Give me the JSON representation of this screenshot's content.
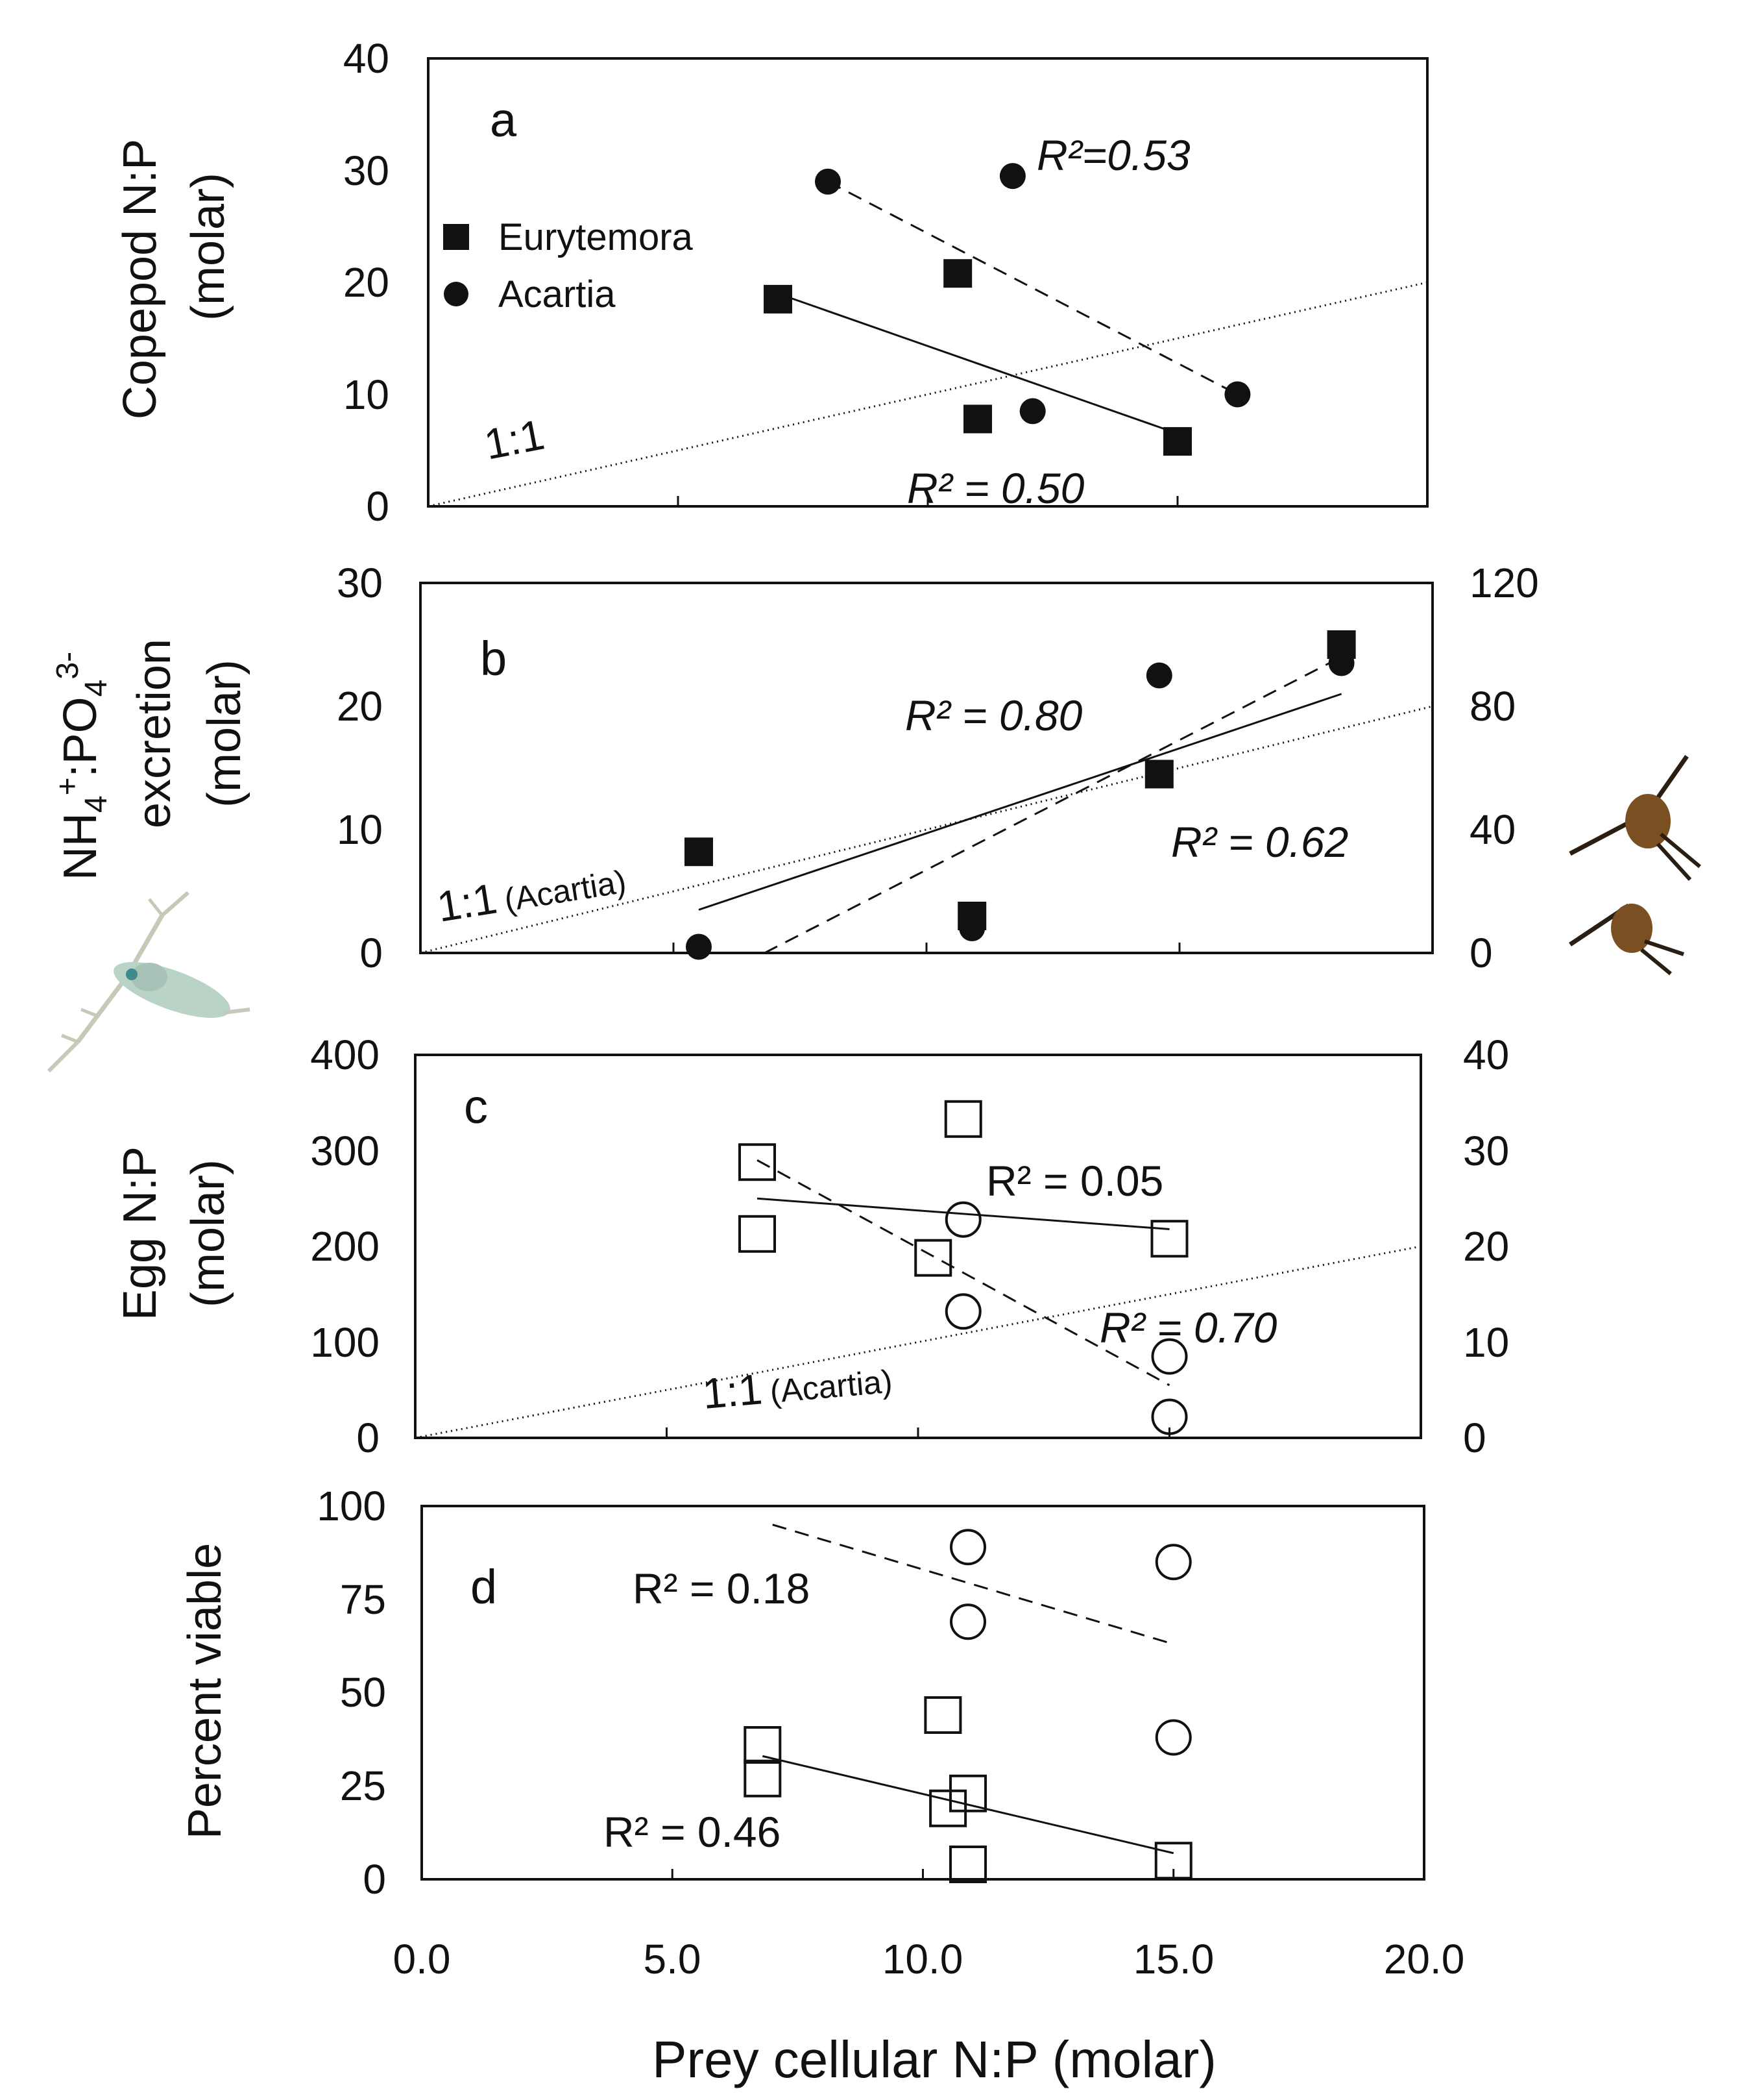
{
  "chart_data": [
    {
      "panel": "a",
      "type": "scatter",
      "ylabel_line1": "Copepod N:P",
      "ylabel_line2": "(molar)",
      "xlim": [
        0,
        20
      ],
      "ylim": [
        0,
        40
      ],
      "yticks": [
        "0",
        "10",
        "20",
        "30",
        "40"
      ],
      "legend": [
        {
          "name": "Eurytemora",
          "marker": "filled-square"
        },
        {
          "name": "Acartia",
          "marker": "filled-circle"
        }
      ],
      "series": [
        {
          "name": "Eurytemora",
          "marker": "filled-square",
          "points": [
            [
              7.0,
              18.5
            ],
            [
              10.6,
              20.8
            ],
            [
              11.0,
              7.8
            ],
            [
              15.0,
              5.8
            ]
          ],
          "fit": [
            [
              7.0,
              19.0
            ],
            [
              15.0,
              6.5
            ]
          ],
          "fit_style": "solid",
          "r2": "R² = 0.50"
        },
        {
          "name": "Acartia",
          "marker": "filled-circle",
          "points": [
            [
              8.0,
              29.0
            ],
            [
              11.7,
              29.5
            ],
            [
              12.1,
              8.5
            ],
            [
              16.2,
              10.0
            ]
          ],
          "fit": [
            [
              8.0,
              29.0
            ],
            [
              16.2,
              10.0
            ]
          ],
          "fit_style": "dashed",
          "r2": "R²=0.53"
        }
      ],
      "reference_line": {
        "label": "1:1",
        "from": [
          0,
          0
        ],
        "to": [
          20,
          20
        ]
      }
    },
    {
      "panel": "b",
      "type": "scatter",
      "ylabel_line1": "NH4+:PO43-",
      "ylabel_line2": "excretion",
      "ylabel_line3": "(molar)",
      "ylabel_parts": {
        "nh": "NH",
        "four": "4",
        "plus": "+",
        "colon_po": ":PO",
        "po4": "4",
        "minus3": "3-"
      },
      "xlim": [
        0,
        20
      ],
      "ylim": [
        0,
        30
      ],
      "yticks": [
        "0",
        "10",
        "20",
        "30"
      ],
      "ylim_right": [
        0,
        120
      ],
      "yticks_right": [
        "0",
        "40",
        "80",
        "120"
      ],
      "series": [
        {
          "name": "Eurytemora",
          "marker": "filled-square",
          "axis": "left",
          "points": [
            [
              5.5,
              8.2
            ],
            [
              10.9,
              3.0
            ],
            [
              14.6,
              14.5
            ],
            [
              18.2,
              25.0
            ]
          ],
          "fit": [
            [
              5.5,
              3.5
            ],
            [
              18.2,
              21.0
            ]
          ],
          "fit_style": "solid",
          "r2": "R² = 0.62"
        },
        {
          "name": "Acartia",
          "marker": "filled-circle",
          "axis": "right",
          "points": [
            [
              5.5,
              2.0
            ],
            [
              10.9,
              8.0
            ],
            [
              14.6,
              90.0
            ],
            [
              18.2,
              94.0
            ]
          ],
          "fit": [
            [
              6.8,
              0.0
            ],
            [
              18.2,
              96.0
            ]
          ],
          "fit_style": "dashed",
          "r2": "R² = 0.80"
        }
      ],
      "reference_line": {
        "label": "1:1",
        "label_small": "(Acartia)",
        "from": [
          0,
          0
        ],
        "to": [
          20,
          20
        ]
      }
    },
    {
      "panel": "c",
      "type": "scatter",
      "ylabel_line1": "Egg N:P",
      "ylabel_line2": "(molar)",
      "xlim": [
        0,
        20
      ],
      "ylim": [
        0,
        400
      ],
      "yticks": [
        "0",
        "100",
        "200",
        "300",
        "400"
      ],
      "ylim_right": [
        0,
        40
      ],
      "yticks_right": [
        "0",
        "10",
        "20",
        "30",
        "40"
      ],
      "series": [
        {
          "name": "Eurytemora",
          "marker": "open-square",
          "axis": "left",
          "points": [
            [
              6.8,
              288
            ],
            [
              6.8,
              213
            ],
            [
              10.3,
              188
            ],
            [
              10.9,
              333
            ],
            [
              15.0,
              208
            ]
          ],
          "fit": [
            [
              6.8,
              250
            ],
            [
              15.0,
              218
            ]
          ],
          "fit_style": "solid",
          "r2": "R² = 0.05"
        },
        {
          "name": "Acartia",
          "marker": "open-circle",
          "axis": "right",
          "points": [
            [
              10.9,
              22.8
            ],
            [
              10.9,
              13.2
            ],
            [
              15.0,
              8.5
            ],
            [
              15.0,
              2.2
            ]
          ],
          "fit": [
            [
              6.8,
              29.0
            ],
            [
              15.0,
              5.5
            ]
          ],
          "fit_style": "dashed",
          "r2": "R² = 0.70"
        }
      ],
      "reference_line": {
        "label": "1:1",
        "label_small": "(Acartia)",
        "from": [
          0,
          0
        ],
        "to": [
          20,
          20
        ],
        "axis": "right"
      }
    },
    {
      "panel": "d",
      "type": "scatter",
      "ylabel_line1": "Percent viable",
      "xlim": [
        0,
        20
      ],
      "ylim": [
        0,
        100
      ],
      "yticks": [
        "0",
        "25",
        "50",
        "75",
        "100"
      ],
      "xticks": [
        "0.0",
        "5.0",
        "10.0",
        "15.0",
        "20.0"
      ],
      "xlabel": "Prey cellular N:P (molar)",
      "series": [
        {
          "name": "Eurytemora",
          "marker": "open-square",
          "points": [
            [
              6.8,
              36
            ],
            [
              6.8,
              27
            ],
            [
              10.4,
              44
            ],
            [
              10.9,
              23
            ],
            [
              10.5,
              19
            ],
            [
              10.9,
              4
            ],
            [
              15.0,
              5
            ]
          ],
          "fit": [
            [
              6.8,
              33
            ],
            [
              15.0,
              7
            ]
          ],
          "fit_style": "solid",
          "r2": "R² = 0.46"
        },
        {
          "name": "Acartia",
          "marker": "open-circle",
          "points": [
            [
              10.9,
              89
            ],
            [
              10.9,
              69
            ],
            [
              15.0,
              85
            ],
            [
              15.0,
              38
            ]
          ],
          "fit": [
            [
              7.0,
              95
            ],
            [
              15.0,
              63
            ]
          ],
          "fit_style": "dashed",
          "r2": "R² = 0.18"
        }
      ]
    }
  ],
  "icons": {
    "left": "pale-copepod-icon",
    "right": "brown-copepods-icon"
  }
}
